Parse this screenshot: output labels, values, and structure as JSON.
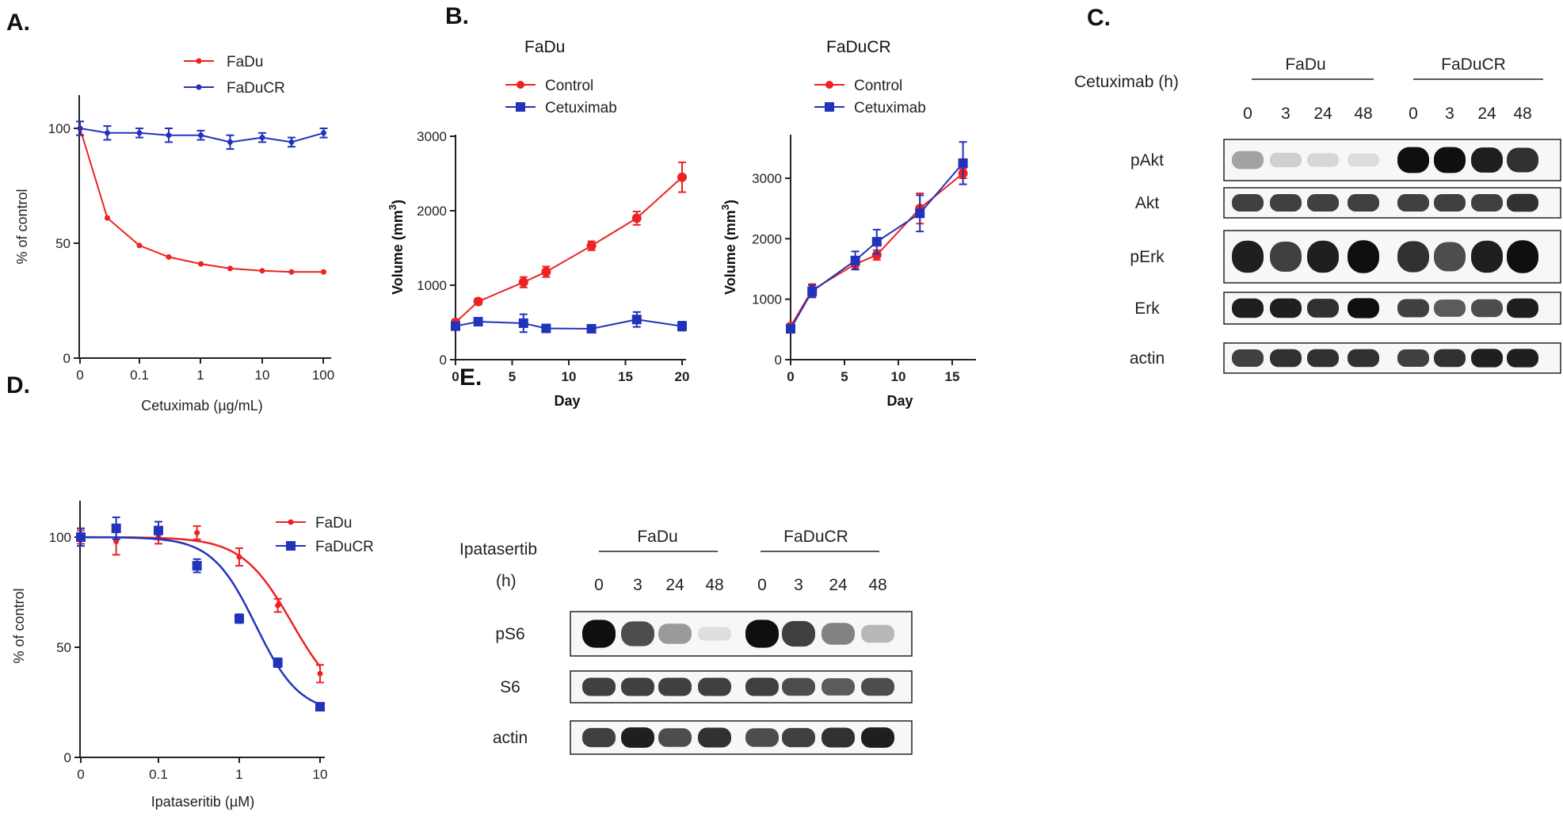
{
  "panels": {
    "A": "A.",
    "B": "B.",
    "C": "C.",
    "D": "D.",
    "E": "E."
  },
  "colors": {
    "red": "#ee2222",
    "blue": "#2233bb"
  },
  "chart_data": [
    {
      "id": "A",
      "type": "line",
      "xlabel": "Cetuximab  (µg/mL)",
      "ylabel": "% of control",
      "x_scale": "log (0 shown at left)",
      "xticks": [
        "0",
        "0.1",
        "1",
        "10",
        "100"
      ],
      "yticks": [
        "0",
        "50",
        "100"
      ],
      "ylim": [
        0,
        110
      ],
      "legend": "top-center",
      "series": [
        {
          "name": "FaDu",
          "color": "red",
          "marker": "dot",
          "x": [
            0,
            0.03,
            0.1,
            0.3,
            1,
            3,
            10,
            30,
            100
          ],
          "y": [
            100,
            61,
            49,
            44,
            41,
            39,
            38,
            37.5,
            37.5
          ],
          "err": [
            0,
            0,
            0,
            0,
            0,
            0,
            0,
            0,
            0
          ]
        },
        {
          "name": "FaDuCR",
          "color": "blue",
          "marker": "dot",
          "x": [
            0,
            0.03,
            0.1,
            0.3,
            1,
            3,
            10,
            30,
            100
          ],
          "y": [
            100,
            98,
            98,
            97,
            97,
            94,
            96,
            94,
            98
          ],
          "err": [
            3,
            3,
            2,
            3,
            2,
            3,
            2,
            2,
            2
          ]
        }
      ]
    },
    {
      "id": "B1",
      "type": "line",
      "title": "FaDu",
      "xlabel": "Day",
      "ylabel": "Volume (mm3)",
      "ylabel_main": "Volume (mm",
      "ylabel_sup": "3",
      "ylabel_end": ")",
      "xticks": [
        "0",
        "5",
        "10",
        "15",
        "20"
      ],
      "yticks": [
        "0",
        "1000",
        "2000",
        "3000"
      ],
      "xlim": [
        0,
        20
      ],
      "ylim": [
        0,
        3000
      ],
      "legend": "top-left",
      "series": [
        {
          "name": "Control",
          "color": "red",
          "marker": "dot",
          "x": [
            0,
            2,
            6,
            8,
            12,
            16,
            20
          ],
          "y": [
            500,
            780,
            1040,
            1180,
            1530,
            1900,
            2450
          ],
          "err": [
            40,
            40,
            70,
            70,
            60,
            90,
            200
          ]
        },
        {
          "name": "Cetuximab",
          "color": "blue",
          "marker": "square",
          "x": [
            0,
            2,
            6,
            8,
            12,
            16,
            20
          ],
          "y": [
            450,
            510,
            490,
            420,
            415,
            540,
            450
          ],
          "err": [
            40,
            40,
            120,
            30,
            30,
            100,
            60
          ]
        }
      ]
    },
    {
      "id": "B2",
      "type": "line",
      "title": "FaDuCR",
      "xlabel": "Day",
      "ylabel": "Volume (mm3)",
      "ylabel_main": "Volume (mm",
      "ylabel_sup": "3",
      "ylabel_end": ")",
      "xticks": [
        "0",
        "5",
        "10",
        "15"
      ],
      "yticks": [
        "0",
        "1000",
        "2000",
        "3000"
      ],
      "xlim": [
        0,
        17
      ],
      "ylim": [
        0,
        3600
      ],
      "legend": "top-left",
      "series": [
        {
          "name": "Control",
          "color": "red",
          "marker": "dot",
          "x": [
            0,
            2,
            6,
            8,
            12,
            16
          ],
          "y": [
            550,
            1150,
            1580,
            1730,
            2500,
            3080
          ],
          "err": [
            40,
            100,
            80,
            80,
            250,
            80
          ]
        },
        {
          "name": "Cetuximab",
          "color": "blue",
          "marker": "square",
          "x": [
            0,
            2,
            6,
            8,
            12,
            16
          ],
          "y": [
            510,
            1130,
            1640,
            1950,
            2420,
            3250
          ],
          "err": [
            40,
            100,
            150,
            200,
            300,
            350
          ]
        }
      ]
    },
    {
      "id": "D",
      "type": "line",
      "xlabel": "Ipataseritib (µM)",
      "ylabel": "% of control",
      "x_scale": "log (0 shown at left)",
      "xticks": [
        "0",
        "0.1",
        "1",
        "10"
      ],
      "yticks": [
        "0",
        "50",
        "100"
      ],
      "ylim": [
        0,
        115
      ],
      "legend": "top-right",
      "fit": "sigmoidal dose-response curves",
      "series": [
        {
          "name": "FaDu",
          "color": "red",
          "marker": "dot",
          "x": [
            0,
            0.03,
            0.1,
            0.3,
            1,
            3,
            10
          ],
          "y": [
            100,
            98,
            100,
            102,
            91,
            69,
            38
          ],
          "err": [
            3,
            6,
            3,
            3,
            4,
            3,
            4
          ],
          "fit_ic50": 4.5,
          "fit_hill": 1.4,
          "fit_bottom": 22
        },
        {
          "name": "FaDuCR",
          "color": "blue",
          "marker": "square",
          "x": [
            0,
            0.03,
            0.1,
            0.3,
            1,
            3,
            10
          ],
          "y": [
            100,
            104,
            103,
            87,
            63,
            43,
            23
          ],
          "err": [
            4,
            5,
            4,
            3,
            2,
            2,
            1
          ],
          "fit_ic50": 1.6,
          "fit_hill": 1.6,
          "fit_bottom": 20
        }
      ]
    }
  ],
  "blots": {
    "C": {
      "treatment_label": "Cetuximab (h)",
      "group1": "FaDu",
      "group2": "FaDuCR",
      "timepoints": [
        "0",
        "3",
        "24",
        "48",
        "0",
        "3",
        "24",
        "48"
      ],
      "rows": [
        {
          "label": "pAkt",
          "intensity": [
            0.45,
            0.2,
            0.15,
            0.1,
            1.0,
            1.0,
            0.95,
            0.9
          ]
        },
        {
          "label": "Akt",
          "intensity": [
            0.85,
            0.85,
            0.85,
            0.85,
            0.85,
            0.85,
            0.85,
            0.9
          ]
        },
        {
          "label": "pErk",
          "intensity": [
            0.95,
            0.85,
            0.95,
            1.0,
            0.9,
            0.8,
            0.95,
            1.0
          ]
        },
        {
          "label": "Erk",
          "intensity": [
            0.95,
            0.95,
            0.9,
            1.0,
            0.85,
            0.75,
            0.8,
            0.95
          ]
        },
        {
          "label": "actin",
          "intensity": [
            0.85,
            0.9,
            0.9,
            0.9,
            0.85,
            0.9,
            0.95,
            0.95
          ]
        }
      ]
    },
    "E": {
      "treatment_label_1": "Ipatasertib",
      "treatment_label_2": "(h)",
      "group1": "FaDu",
      "group2": "FaDuCR",
      "timepoints": [
        "0",
        "3",
        "24",
        "48",
        "0",
        "3",
        "24",
        "48"
      ],
      "rows": [
        {
          "label": "pS6",
          "intensity": [
            1.0,
            0.8,
            0.5,
            0.08,
            1.0,
            0.85,
            0.6,
            0.35
          ]
        },
        {
          "label": "S6",
          "intensity": [
            0.85,
            0.85,
            0.85,
            0.85,
            0.85,
            0.8,
            0.75,
            0.8
          ]
        },
        {
          "label": "actin",
          "intensity": [
            0.85,
            0.95,
            0.8,
            0.9,
            0.8,
            0.85,
            0.9,
            0.95
          ]
        }
      ]
    }
  }
}
